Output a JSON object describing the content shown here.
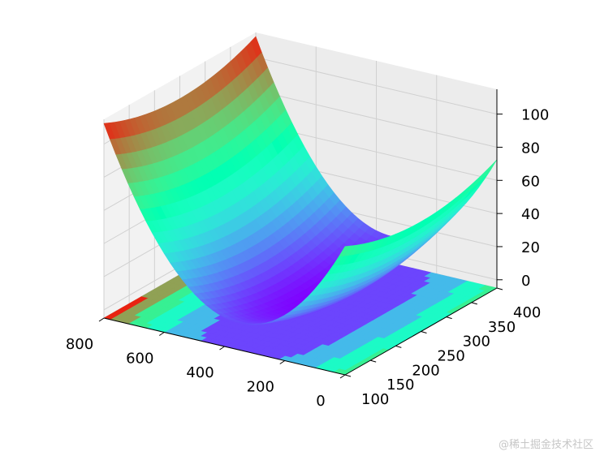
{
  "chart_data": {
    "type": "surface3d",
    "colormap": "rainbow",
    "grid": true,
    "surface_function": "z = ((x - 350)^2 + (y - 250)^2) / 2000",
    "x_axis": {
      "label": "",
      "ticks": [
        0,
        200,
        400,
        600,
        800
      ],
      "range": [
        0,
        800
      ]
    },
    "y_axis": {
      "label": "",
      "ticks": [
        100,
        150,
        200,
        250,
        300,
        350,
        400
      ],
      "range": [
        100,
        400
      ]
    },
    "z_axis": {
      "label": "",
      "ticks": [
        0,
        20,
        40,
        60,
        80,
        100
      ],
      "range": [
        -5,
        115
      ]
    },
    "surface_samples": [
      {
        "x": 800,
        "y": 100,
        "z": 112
      },
      {
        "x": 0,
        "y": 100,
        "z": 73
      },
      {
        "x": 800,
        "y": 400,
        "z": 112
      },
      {
        "x": 0,
        "y": 400,
        "z": 73
      },
      {
        "x": 350,
        "y": 250,
        "z": 0
      }
    ],
    "contour_projection": {
      "plane": "z-floor",
      "levels": [
        0,
        20,
        40,
        60,
        80,
        100
      ]
    }
  },
  "watermark": "@稀土掘金技术社区"
}
